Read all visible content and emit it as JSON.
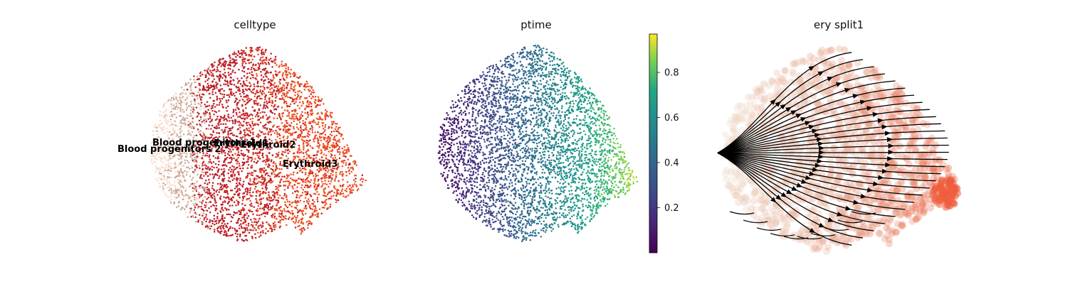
{
  "chart_data": [
    {
      "type": "scatter",
      "title": "celltype",
      "categories": [
        "Blood progenitors 1",
        "Blood progenitors 2",
        "Erythroid1",
        "Erythroid2",
        "Erythroid3"
      ],
      "colors": {
        "Blood progenitors 1": "#f9decf",
        "Blood progenitors 2": "#c9a997",
        "Erythroid1": "#c72228",
        "Erythroid2": "#b51d24",
        "Erythroid3": "#ef4e22"
      },
      "legend": "on data",
      "axes": "off"
    },
    {
      "type": "scatter",
      "title": "ptime",
      "colormap": "viridis",
      "colorbar": {
        "range": [
          0.0,
          0.97
        ],
        "ticks": [
          0.2,
          0.4,
          0.6,
          0.8
        ],
        "tick_labels": [
          "0.2",
          "0.4",
          "0.6",
          "0.8"
        ]
      },
      "axes": "off"
    },
    {
      "type": "scatter",
      "title": "ery split1",
      "overlay": "velocity streamlines",
      "stream_color": "#000000",
      "point_colors": [
        "#f0e0d3",
        "#e8a48c",
        "#ef5c3c"
      ],
      "axes": "off"
    }
  ]
}
